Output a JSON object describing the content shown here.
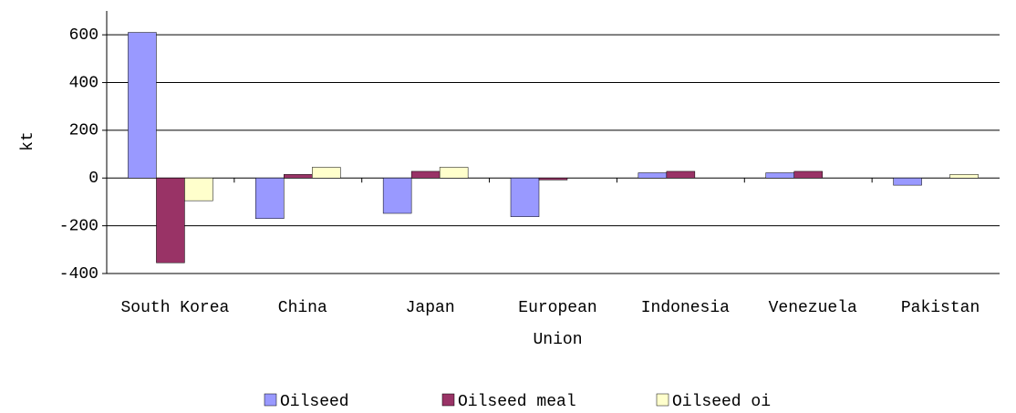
{
  "chart_data": {
    "type": "bar",
    "y_label": "kt",
    "categories": [
      "South Korea",
      "China",
      "Japan",
      "European Union",
      "Indonesia",
      "Venezuela",
      "Pakistan"
    ],
    "series": [
      {
        "name": "Oilseed",
        "color": "#9999ff",
        "values": [
          610,
          -170,
          -148,
          -162,
          22,
          22,
          -30
        ]
      },
      {
        "name": "Oilseed meal",
        "color": "#993366",
        "values": [
          -355,
          15,
          28,
          -8,
          28,
          28,
          null
        ]
      },
      {
        "name": "Oilseed oi",
        "color": "#ffffcc",
        "values": [
          -95,
          45,
          45,
          null,
          null,
          null,
          15
        ]
      }
    ],
    "ylim": [
      -400,
      700
    ],
    "yticks": [
      -400,
      -200,
      0,
      200,
      400,
      600
    ],
    "grid": true,
    "legend": "bottom"
  }
}
